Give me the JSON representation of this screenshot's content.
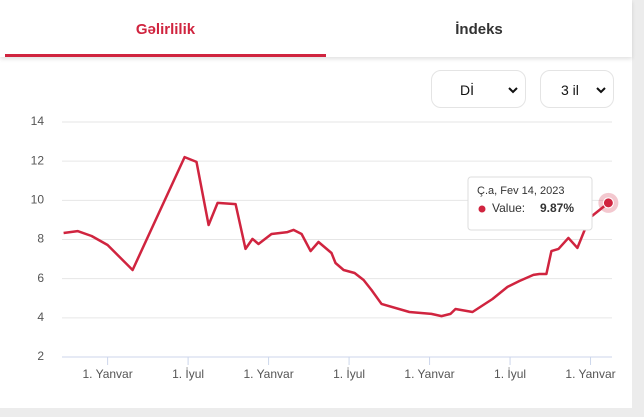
{
  "tabs": [
    "Gəlirlilik",
    "İndeks"
  ],
  "selects": [
    "Dİ",
    "3 il"
  ],
  "tooltip": {
    "date": "Ç.a, Fev 14, 2023",
    "label": "Value:",
    "value_label": "9.87%"
  },
  "chart_data": {
    "type": "line",
    "color": "#d0243f",
    "grid": true,
    "xlim": [
      -3.4,
      37.6
    ],
    "ylim": [
      2,
      14
    ],
    "yticks": [
      2,
      4,
      6,
      8,
      10,
      12,
      14
    ],
    "xticks": [
      {
        "value": 0,
        "label": "1. Yanvar"
      },
      {
        "value": 6,
        "label": "1. İyul"
      },
      {
        "value": 12,
        "label": "1. Yanvar"
      },
      {
        "value": 18,
        "label": "1. İyul"
      },
      {
        "value": 24,
        "label": "1. Yanvar"
      },
      {
        "value": 30,
        "label": "1. İyul"
      },
      {
        "value": 36,
        "label": "1. Yanvar"
      }
    ],
    "x": [
      -3.28,
      -2.24,
      -1.19,
      0,
      1.86,
      5.74,
      6.63,
      7.53,
      8.2,
      9.54,
      10.28,
      10.8,
      11.25,
      12.22,
      13.41,
      13.86,
      14.46,
      15.13,
      15.72,
      16.69,
      16.99,
      17.59,
      18.41,
      19.08,
      19.67,
      20.42,
      22.5,
      24.14,
      24.89,
      25.56,
      25.93,
      27.2,
      28.69,
      29.81,
      30.7,
      31.74,
      32.19,
      32.71,
      33.08,
      33.61,
      34.35,
      35.02,
      35.92,
      37.33
    ],
    "values": [
      8.33,
      8.43,
      8.18,
      7.72,
      6.44,
      12.21,
      11.96,
      8.74,
      9.87,
      9.81,
      7.52,
      8.03,
      7.77,
      8.28,
      8.38,
      8.49,
      8.28,
      7.41,
      7.87,
      7.31,
      6.8,
      6.44,
      6.29,
      5.93,
      5.42,
      4.71,
      4.3,
      4.2,
      4.09,
      4.2,
      4.45,
      4.3,
      4.96,
      5.58,
      5.88,
      6.19,
      6.24,
      6.24,
      7.41,
      7.52,
      8.08,
      7.57,
      9.1,
      9.87
    ]
  }
}
